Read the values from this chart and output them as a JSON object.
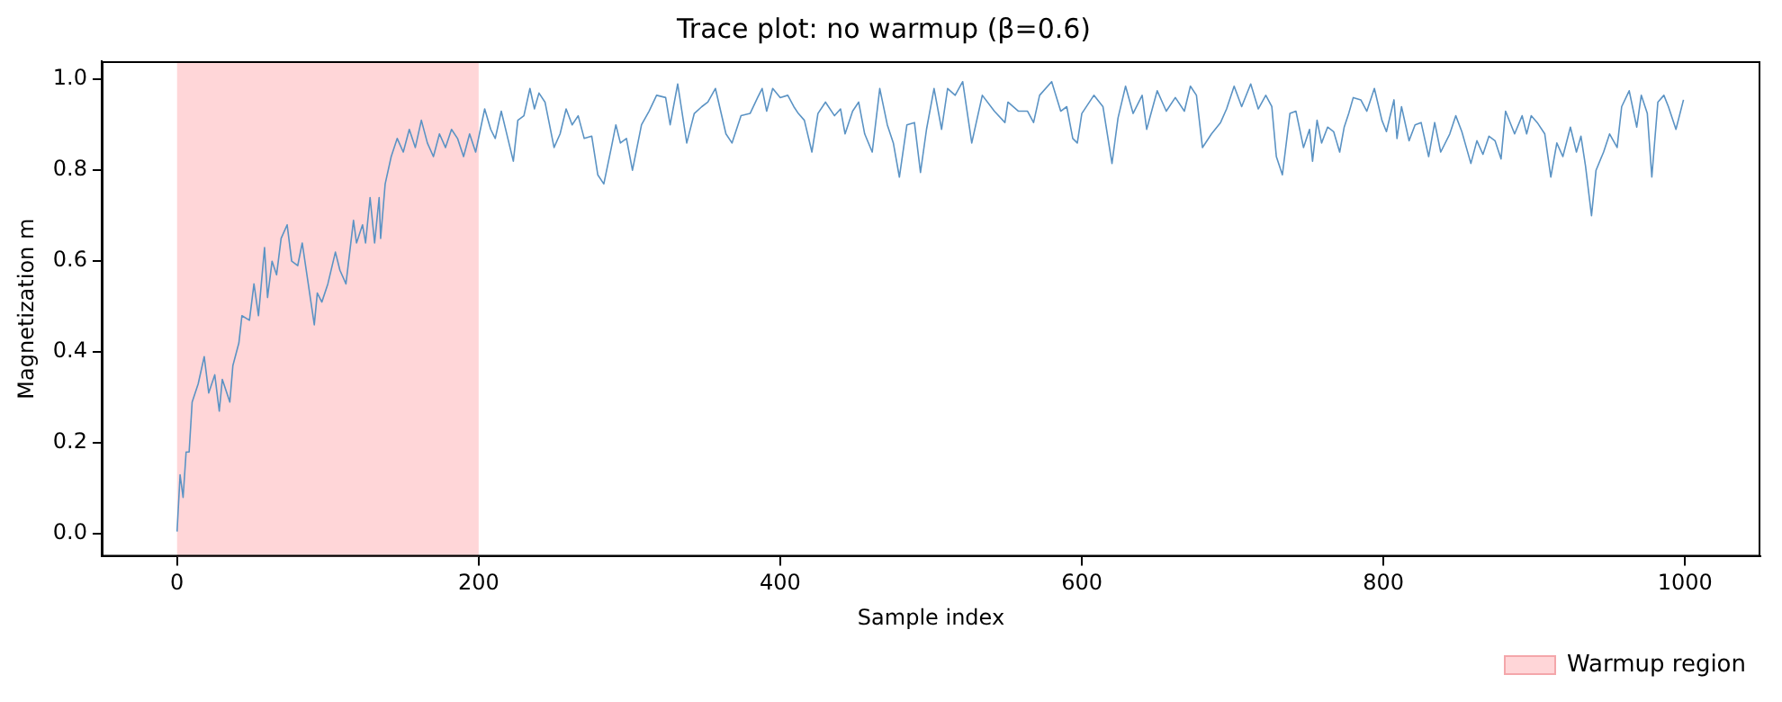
{
  "chart_data": {
    "type": "line",
    "title": "Trace plot: no warmup (β=0.6)",
    "xlabel": "Sample index",
    "ylabel": "Magnetization m",
    "xlim": [
      -50,
      1050
    ],
    "xticks": [
      0,
      200,
      400,
      600,
      800,
      1000
    ],
    "ylim": [
      -0.05,
      1.04
    ],
    "yticks": [
      {
        "value": 0,
        "label": "0.0"
      },
      0.2,
      0.4,
      0.6,
      0.8,
      {
        "value": 1,
        "label": "1.0"
      }
    ],
    "grid": false,
    "legend": "bottom",
    "marker": "none",
    "line_style": "solid",
    "bands": [
      {
        "axis": "x",
        "from": 0,
        "to": 200,
        "label": "Warmup region",
        "color": "#ffd6d8"
      }
    ],
    "series": [
      {
        "color": "#5b93c4",
        "x": [
          0,
          2,
          4,
          6,
          8,
          10,
          14,
          18,
          21,
          25,
          28,
          30,
          35,
          37,
          41,
          43,
          48,
          51,
          54,
          58,
          60,
          63,
          66,
          69,
          73,
          76,
          80,
          83,
          87,
          91,
          93,
          96,
          100,
          105,
          108,
          112,
          117,
          119,
          123,
          125,
          128,
          131,
          134,
          135,
          138,
          142,
          146,
          150,
          154,
          158,
          162,
          166,
          170,
          174,
          178,
          182,
          186,
          190,
          194,
          198,
          204,
          208,
          211,
          215,
          219,
          223,
          226,
          230,
          234,
          237,
          240,
          244,
          250,
          254,
          258,
          262,
          266,
          270,
          275,
          279,
          283,
          288,
          291,
          294,
          298,
          302,
          308,
          313,
          318,
          324,
          327,
          332,
          338,
          343,
          348,
          352,
          357,
          364,
          368,
          374,
          380,
          385,
          388,
          391,
          395,
          400,
          405,
          409,
          412,
          416,
          421,
          425,
          430,
          436,
          440,
          443,
          448,
          452,
          456,
          461,
          466,
          471,
          475,
          479,
          484,
          489,
          493,
          497,
          502,
          507,
          511,
          516,
          521,
          527,
          534,
          542,
          549,
          551,
          558,
          564,
          568,
          572,
          580,
          586,
          590,
          594,
          597,
          600,
          608,
          614,
          620,
          624,
          629,
          634,
          640,
          643,
          650,
          656,
          662,
          668,
          672,
          676,
          680,
          686,
          692,
          696,
          701,
          706,
          712,
          717,
          722,
          726,
          729,
          733,
          738,
          742,
          747,
          751,
          753,
          756,
          759,
          763,
          767,
          771,
          774,
          777,
          780,
          785,
          789,
          794,
          799,
          802,
          807,
          809,
          812,
          817,
          821,
          825,
          830,
          834,
          838,
          844,
          848,
          852,
          858,
          862,
          866,
          870,
          874,
          878,
          881,
          887,
          892,
          895,
          898,
          902,
          907,
          911,
          915,
          919,
          924,
          928,
          931,
          934,
          938,
          941,
          946,
          950,
          955,
          958,
          963,
          968,
          971,
          975,
          978,
          982,
          986,
          989,
          994,
          999
        ],
        "values": [
          0.005,
          0.13,
          0.08,
          0.18,
          0.18,
          0.29,
          0.33,
          0.39,
          0.31,
          0.35,
          0.27,
          0.34,
          0.29,
          0.37,
          0.42,
          0.48,
          0.47,
          0.55,
          0.48,
          0.63,
          0.52,
          0.6,
          0.57,
          0.65,
          0.68,
          0.6,
          0.59,
          0.64,
          0.55,
          0.46,
          0.53,
          0.51,
          0.55,
          0.62,
          0.58,
          0.55,
          0.69,
          0.64,
          0.68,
          0.64,
          0.74,
          0.64,
          0.74,
          0.65,
          0.77,
          0.83,
          0.87,
          0.84,
          0.89,
          0.85,
          0.91,
          0.86,
          0.83,
          0.88,
          0.85,
          0.89,
          0.87,
          0.83,
          0.88,
          0.84,
          0.935,
          0.89,
          0.87,
          0.93,
          0.875,
          0.82,
          0.91,
          0.92,
          0.98,
          0.935,
          0.97,
          0.95,
          0.85,
          0.88,
          0.935,
          0.9,
          0.92,
          0.87,
          0.875,
          0.79,
          0.77,
          0.85,
          0.9,
          0.86,
          0.87,
          0.8,
          0.9,
          0.93,
          0.965,
          0.96,
          0.9,
          0.99,
          0.86,
          0.925,
          0.94,
          0.95,
          0.98,
          0.88,
          0.86,
          0.92,
          0.925,
          0.96,
          0.98,
          0.93,
          0.98,
          0.96,
          0.965,
          0.94,
          0.925,
          0.91,
          0.84,
          0.925,
          0.95,
          0.92,
          0.935,
          0.88,
          0.93,
          0.95,
          0.88,
          0.84,
          0.98,
          0.9,
          0.86,
          0.785,
          0.9,
          0.905,
          0.795,
          0.89,
          0.98,
          0.89,
          0.98,
          0.965,
          0.995,
          0.86,
          0.965,
          0.93,
          0.905,
          0.95,
          0.93,
          0.93,
          0.905,
          0.965,
          0.995,
          0.93,
          0.94,
          0.87,
          0.86,
          0.925,
          0.965,
          0.94,
          0.815,
          0.915,
          0.985,
          0.925,
          0.965,
          0.89,
          0.975,
          0.93,
          0.96,
          0.93,
          0.985,
          0.965,
          0.85,
          0.88,
          0.905,
          0.935,
          0.985,
          0.94,
          0.99,
          0.935,
          0.965,
          0.94,
          0.83,
          0.79,
          0.925,
          0.93,
          0.85,
          0.89,
          0.82,
          0.91,
          0.86,
          0.895,
          0.885,
          0.84,
          0.895,
          0.925,
          0.96,
          0.955,
          0.93,
          0.98,
          0.91,
          0.885,
          0.955,
          0.87,
          0.94,
          0.865,
          0.9,
          0.905,
          0.83,
          0.905,
          0.84,
          0.88,
          0.92,
          0.885,
          0.815,
          0.865,
          0.835,
          0.875,
          0.865,
          0.825,
          0.93,
          0.88,
          0.92,
          0.88,
          0.92,
          0.905,
          0.88,
          0.785,
          0.86,
          0.83,
          0.895,
          0.84,
          0.875,
          0.81,
          0.7,
          0.8,
          0.84,
          0.88,
          0.85,
          0.94,
          0.975,
          0.895,
          0.965,
          0.925,
          0.785,
          0.95,
          0.965,
          0.94,
          0.89,
          0.955
        ]
      }
    ]
  }
}
